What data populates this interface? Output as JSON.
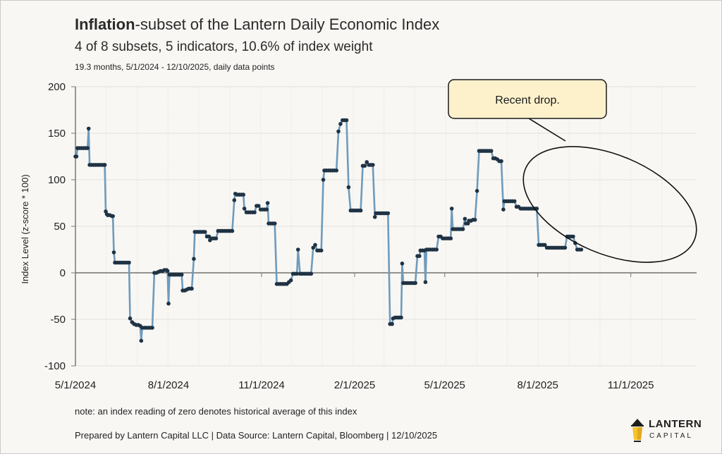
{
  "header": {
    "title_bold": "Inflation",
    "title_rest": "-subset of the Lantern Daily Economic Index",
    "subtitle": "4 of 8 subsets, 5 indicators, 10.6% of index weight",
    "detail": "19.3 months, 5/1/2024 - 12/10/2025, daily data points"
  },
  "footer": {
    "note": "note: an index reading of zero denotes historical average of this index",
    "credit": "Prepared by Lantern Capital LLC | Data Source: Lantern Capital, Bloomberg | 12/10/2025"
  },
  "logo": {
    "word1": "LANTERN",
    "word2": "CAPITAL",
    "icon": "lantern-icon",
    "accent": "#f4c430"
  },
  "colors": {
    "line": "#6f9bbc",
    "marker": "#1f3344",
    "grid": "#e2e0dc",
    "callout_fill": "#fdf1cc",
    "background": "#f8f7f4"
  },
  "chart_data": {
    "type": "line",
    "title": "Inflation-subset of the Lantern Daily Economic Index",
    "xlabel": "",
    "ylabel": "Index Level (z-score * 100)",
    "ylim": [
      -100,
      200
    ],
    "yticks": [
      200,
      150,
      100,
      50,
      0,
      -50,
      -100
    ],
    "xticks": [
      "5/1/2024",
      "8/1/2024",
      "11/1/2024",
      "2/1/2025",
      "5/1/2025",
      "8/1/2025",
      "11/1/2025"
    ],
    "xtick_days": [
      0,
      92,
      184,
      276,
      365,
      457,
      549
    ],
    "xrange_days": [
      0,
      588
    ],
    "grid": true,
    "annotation": {
      "text": "Recent drop.",
      "target": "ellipse around Aug-Dec 2025 values"
    },
    "series": [
      {
        "name": "Inflation subset",
        "points_day_value": [
          [
            0,
            125
          ],
          [
            1,
            125
          ],
          [
            2,
            134
          ],
          [
            4,
            134
          ],
          [
            6,
            134
          ],
          [
            8,
            134
          ],
          [
            10,
            134
          ],
          [
            12,
            134
          ],
          [
            13,
            155
          ],
          [
            14,
            116
          ],
          [
            16,
            116
          ],
          [
            18,
            116
          ],
          [
            20,
            116
          ],
          [
            22,
            116
          ],
          [
            24,
            116
          ],
          [
            26,
            116
          ],
          [
            28,
            116
          ],
          [
            29,
            116
          ],
          [
            30,
            66
          ],
          [
            31,
            63
          ],
          [
            32,
            62
          ],
          [
            34,
            62
          ],
          [
            36,
            61
          ],
          [
            37,
            61
          ],
          [
            38,
            22
          ],
          [
            39,
            11
          ],
          [
            41,
            11
          ],
          [
            43,
            11
          ],
          [
            45,
            11
          ],
          [
            47,
            11
          ],
          [
            49,
            11
          ],
          [
            51,
            11
          ],
          [
            53,
            11
          ],
          [
            54,
            -49
          ],
          [
            56,
            -53
          ],
          [
            58,
            -55
          ],
          [
            60,
            -56
          ],
          [
            62,
            -56
          ],
          [
            64,
            -57
          ],
          [
            65,
            -73
          ],
          [
            66,
            -59
          ],
          [
            68,
            -59
          ],
          [
            70,
            -59
          ],
          [
            72,
            -59
          ],
          [
            74,
            -59
          ],
          [
            76,
            -59
          ],
          [
            78,
            0
          ],
          [
            80,
            0
          ],
          [
            82,
            1
          ],
          [
            84,
            2
          ],
          [
            86,
            2
          ],
          [
            88,
            3
          ],
          [
            90,
            3
          ],
          [
            91,
            2
          ],
          [
            92,
            -33
          ],
          [
            93,
            -2
          ],
          [
            95,
            -2
          ],
          [
            97,
            -2
          ],
          [
            99,
            -2
          ],
          [
            101,
            -2
          ],
          [
            103,
            -2
          ],
          [
            105,
            -2
          ],
          [
            106,
            -19
          ],
          [
            108,
            -19
          ],
          [
            110,
            -18
          ],
          [
            112,
            -17
          ],
          [
            114,
            -17
          ],
          [
            115,
            -17
          ],
          [
            117,
            15
          ],
          [
            118,
            44
          ],
          [
            120,
            44
          ],
          [
            122,
            44
          ],
          [
            124,
            44
          ],
          [
            126,
            44
          ],
          [
            128,
            44
          ],
          [
            130,
            39
          ],
          [
            132,
            39
          ],
          [
            133,
            35
          ],
          [
            135,
            37
          ],
          [
            137,
            37
          ],
          [
            139,
            37
          ],
          [
            141,
            45
          ],
          [
            143,
            45
          ],
          [
            145,
            45
          ],
          [
            147,
            45
          ],
          [
            149,
            45
          ],
          [
            151,
            45
          ],
          [
            153,
            45
          ],
          [
            155,
            45
          ],
          [
            157,
            78
          ],
          [
            158,
            85
          ],
          [
            160,
            84
          ],
          [
            162,
            84
          ],
          [
            164,
            84
          ],
          [
            166,
            84
          ],
          [
            167,
            69
          ],
          [
            169,
            65
          ],
          [
            171,
            65
          ],
          [
            173,
            65
          ],
          [
            175,
            65
          ],
          [
            177,
            65
          ],
          [
            179,
            72
          ],
          [
            181,
            72
          ],
          [
            183,
            68
          ],
          [
            185,
            68
          ],
          [
            187,
            68
          ],
          [
            189,
            68
          ],
          [
            190,
            75
          ],
          [
            191,
            53
          ],
          [
            193,
            53
          ],
          [
            195,
            53
          ],
          [
            197,
            53
          ],
          [
            199,
            -12
          ],
          [
            201,
            -12
          ],
          [
            203,
            -12
          ],
          [
            205,
            -12
          ],
          [
            207,
            -12
          ],
          [
            209,
            -12
          ],
          [
            211,
            -10
          ],
          [
            213,
            -8
          ],
          [
            215,
            -1
          ],
          [
            217,
            -1
          ],
          [
            219,
            -1
          ],
          [
            220,
            25
          ],
          [
            222,
            -1
          ],
          [
            224,
            -1
          ],
          [
            226,
            -1
          ],
          [
            228,
            -1
          ],
          [
            230,
            -1
          ],
          [
            232,
            -1
          ],
          [
            233,
            -1
          ],
          [
            235,
            27
          ],
          [
            237,
            30
          ],
          [
            239,
            24
          ],
          [
            241,
            24
          ],
          [
            243,
            24
          ],
          [
            245,
            100
          ],
          [
            246,
            110
          ],
          [
            248,
            110
          ],
          [
            250,
            110
          ],
          [
            252,
            110
          ],
          [
            254,
            110
          ],
          [
            256,
            110
          ],
          [
            258,
            110
          ],
          [
            260,
            152
          ],
          [
            262,
            160
          ],
          [
            264,
            164
          ],
          [
            266,
            164
          ],
          [
            268,
            164
          ],
          [
            270,
            92
          ],
          [
            272,
            67
          ],
          [
            274,
            67
          ],
          [
            276,
            67
          ],
          [
            278,
            67
          ],
          [
            280,
            67
          ],
          [
            282,
            67
          ],
          [
            284,
            115
          ],
          [
            286,
            115
          ],
          [
            288,
            119
          ],
          [
            290,
            116
          ],
          [
            292,
            116
          ],
          [
            294,
            116
          ],
          [
            296,
            60
          ],
          [
            297,
            64
          ],
          [
            299,
            64
          ],
          [
            301,
            64
          ],
          [
            303,
            64
          ],
          [
            305,
            64
          ],
          [
            307,
            64
          ],
          [
            309,
            64
          ],
          [
            311,
            -55
          ],
          [
            313,
            -55
          ],
          [
            314,
            -49
          ],
          [
            316,
            -48
          ],
          [
            318,
            -48
          ],
          [
            320,
            -48
          ],
          [
            322,
            -48
          ],
          [
            323,
            10
          ],
          [
            324,
            -11
          ],
          [
            326,
            -11
          ],
          [
            328,
            -11
          ],
          [
            330,
            -11
          ],
          [
            332,
            -11
          ],
          [
            334,
            -11
          ],
          [
            336,
            -11
          ],
          [
            338,
            18
          ],
          [
            340,
            18
          ],
          [
            341,
            24
          ],
          [
            343,
            24
          ],
          [
            345,
            24
          ],
          [
            346,
            -10
          ],
          [
            347,
            25
          ],
          [
            349,
            25
          ],
          [
            351,
            25
          ],
          [
            353,
            25
          ],
          [
            355,
            25
          ],
          [
            357,
            25
          ],
          [
            359,
            39
          ],
          [
            361,
            39
          ],
          [
            363,
            37
          ],
          [
            365,
            37
          ],
          [
            367,
            37
          ],
          [
            369,
            37
          ],
          [
            371,
            37
          ],
          [
            372,
            69
          ],
          [
            373,
            47
          ],
          [
            375,
            47
          ],
          [
            377,
            47
          ],
          [
            379,
            47
          ],
          [
            381,
            47
          ],
          [
            383,
            47
          ],
          [
            385,
            58
          ],
          [
            386,
            53
          ],
          [
            388,
            53
          ],
          [
            389,
            56
          ],
          [
            391,
            56
          ],
          [
            393,
            57
          ],
          [
            395,
            57
          ],
          [
            397,
            88
          ],
          [
            399,
            131
          ],
          [
            401,
            131
          ],
          [
            403,
            131
          ],
          [
            405,
            131
          ],
          [
            407,
            131
          ],
          [
            409,
            131
          ],
          [
            411,
            131
          ],
          [
            413,
            123
          ],
          [
            415,
            123
          ],
          [
            417,
            122
          ],
          [
            419,
            120
          ],
          [
            421,
            120
          ],
          [
            423,
            68
          ],
          [
            424,
            77
          ],
          [
            426,
            77
          ],
          [
            428,
            77
          ],
          [
            430,
            77
          ],
          [
            432,
            77
          ],
          [
            434,
            77
          ],
          [
            436,
            71
          ],
          [
            438,
            71
          ],
          [
            440,
            69
          ],
          [
            442,
            69
          ],
          [
            444,
            69
          ],
          [
            446,
            69
          ],
          [
            448,
            69
          ],
          [
            450,
            69
          ],
          [
            452,
            69
          ],
          [
            454,
            69
          ],
          [
            456,
            69
          ],
          [
            458,
            30
          ],
          [
            460,
            30
          ],
          [
            462,
            30
          ],
          [
            464,
            30
          ],
          [
            466,
            27
          ],
          [
            468,
            27
          ],
          [
            470,
            27
          ],
          [
            472,
            27
          ],
          [
            474,
            27
          ],
          [
            476,
            27
          ],
          [
            478,
            27
          ],
          [
            480,
            27
          ],
          [
            482,
            27
          ],
          [
            484,
            27
          ],
          [
            486,
            39
          ],
          [
            488,
            39
          ],
          [
            490,
            39
          ],
          [
            492,
            39
          ],
          [
            494,
            32
          ],
          [
            496,
            25
          ],
          [
            498,
            25
          ],
          [
            500,
            25
          ]
        ]
      }
    ]
  }
}
